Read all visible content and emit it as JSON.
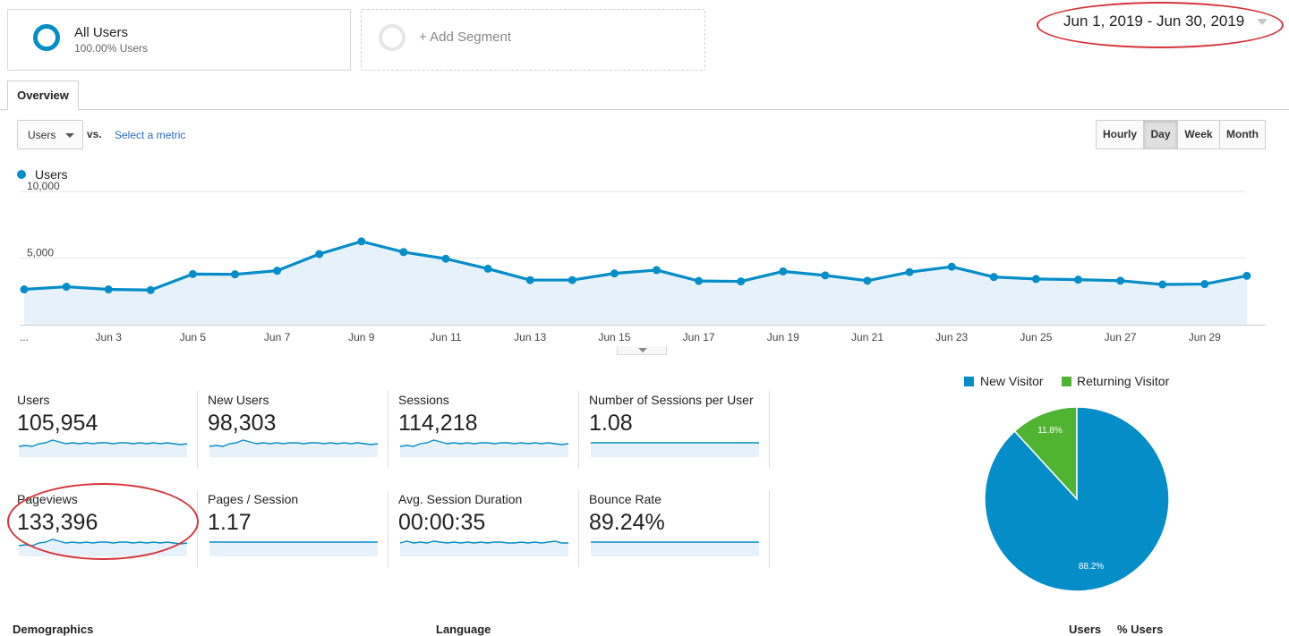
{
  "segments": {
    "all_users": {
      "title": "All Users",
      "subtitle": "100.00% Users"
    },
    "add_segment": {
      "label": "+ Add Segment"
    }
  },
  "date_range": "Jun 1, 2019 - Jun 30, 2019",
  "tabs": [
    {
      "label": "Overview",
      "active": true
    }
  ],
  "metric_select": {
    "value": "Users",
    "vs": "vs.",
    "select_metric": "Select a metric"
  },
  "period_buttons": [
    {
      "label": "Hourly",
      "active": false
    },
    {
      "label": "Day",
      "active": true
    },
    {
      "label": "Week",
      "active": false
    },
    {
      "label": "Month",
      "active": false
    }
  ],
  "legend": {
    "series": "Users",
    "color": "#058dc7"
  },
  "chart_data": {
    "type": "area",
    "x": [
      "Jun 1",
      "Jun 2",
      "Jun 3",
      "Jun 4",
      "Jun 5",
      "Jun 6",
      "Jun 7",
      "Jun 8",
      "Jun 9",
      "Jun 10",
      "Jun 11",
      "Jun 12",
      "Jun 13",
      "Jun 14",
      "Jun 15",
      "Jun 16",
      "Jun 17",
      "Jun 18",
      "Jun 19",
      "Jun 20",
      "Jun 21",
      "Jun 22",
      "Jun 23",
      "Jun 24",
      "Jun 25",
      "Jun 26",
      "Jun 27",
      "Jun 28",
      "Jun 29",
      "Jun 30"
    ],
    "series": [
      {
        "name": "Users",
        "values": [
          2650,
          2850,
          2650,
          2600,
          3800,
          3780,
          4050,
          5300,
          6250,
          5450,
          4950,
          4200,
          3350,
          3350,
          3850,
          4100,
          3280,
          3250,
          4000,
          3700,
          3300,
          3950,
          4350,
          3580,
          3430,
          3380,
          3300,
          3020,
          3050,
          3670
        ]
      }
    ],
    "y_ticks": [
      "10,000",
      "5,000"
    ],
    "x_tick_labels": [
      "...",
      "Jun 3",
      "Jun 5",
      "Jun 7",
      "Jun 9",
      "Jun 11",
      "Jun 13",
      "Jun 15",
      "Jun 17",
      "Jun 19",
      "Jun 21",
      "Jun 23",
      "Jun 25",
      "Jun 27",
      "Jun 29"
    ],
    "ylim": [
      0,
      10000
    ],
    "grid": true
  },
  "scorecards": [
    {
      "label": "Users",
      "value": "105,954",
      "spark": "wave"
    },
    {
      "label": "New Users",
      "value": "98,303",
      "spark": "wave"
    },
    {
      "label": "Sessions",
      "value": "114,218",
      "spark": "wave"
    },
    {
      "label": "Number of Sessions per User",
      "value": "1.08",
      "spark": "flat"
    },
    {
      "label": "Pageviews",
      "value": "133,396",
      "spark": "wave"
    },
    {
      "label": "Pages / Session",
      "value": "1.17",
      "spark": "flat"
    },
    {
      "label": "Avg. Session Duration",
      "value": "00:00:35",
      "spark": "duration"
    },
    {
      "label": "Bounce Rate",
      "value": "89.24%",
      "spark": "flat"
    }
  ],
  "pie": {
    "legend": [
      {
        "name": "New Visitor",
        "color": "#058dc7"
      },
      {
        "name": "Returning Visitor",
        "color": "#50b432"
      }
    ],
    "slices": [
      {
        "name": "New Visitor",
        "value": 88.2,
        "label": "88.2%",
        "color": "#058dc7"
      },
      {
        "name": "Returning Visitor",
        "value": 11.8,
        "label": "11.8%",
        "color": "#50b432"
      }
    ]
  },
  "bottom": {
    "demographics": "Demographics",
    "language": "Language",
    "users": "Users",
    "pct_users": "% Users"
  },
  "colors": {
    "accent": "#058dc7",
    "fill": "#e7f1f9",
    "annotation": "#d6353a"
  }
}
